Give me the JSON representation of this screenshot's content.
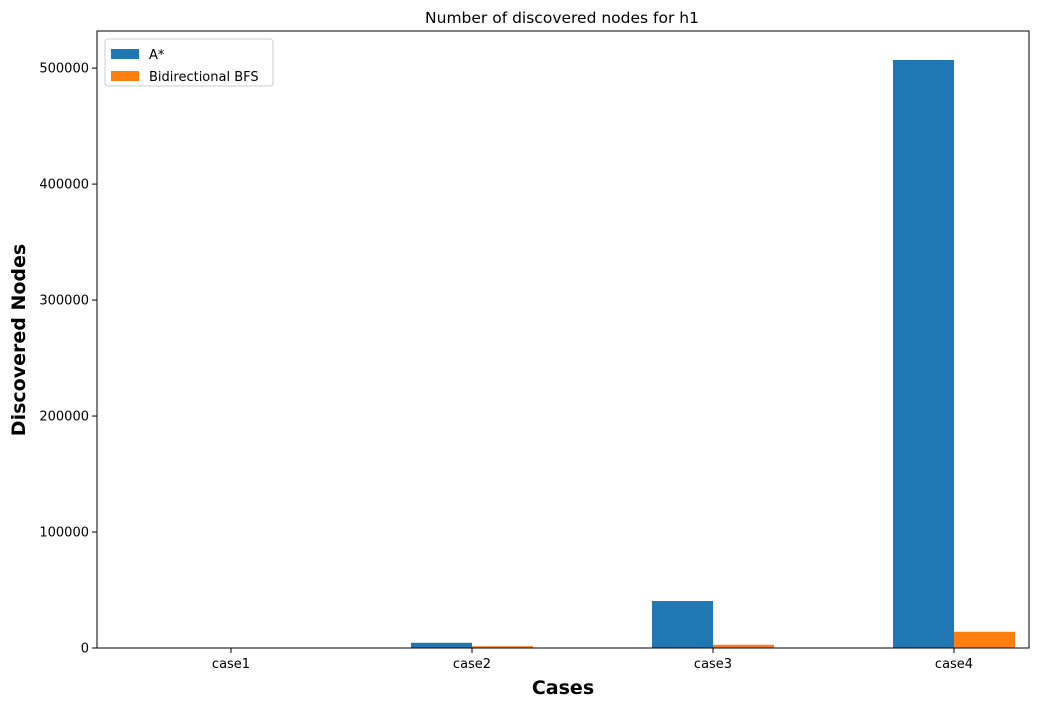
{
  "chart_data": {
    "type": "bar",
    "title": "Number of discovered nodes for h1",
    "xlabel": "Cases",
    "ylabel": "Discovered Nodes",
    "categories": [
      "case1",
      "case2",
      "case3",
      "case4"
    ],
    "series": [
      {
        "name": "A*",
        "color": "#1f77b4",
        "values": [
          150,
          4500,
          40500,
          507000
        ]
      },
      {
        "name": "Bidirectional BFS",
        "color": "#ff7f0e",
        "values": [
          50,
          1500,
          2800,
          14000
        ]
      }
    ],
    "ylim": [
      0,
      532000
    ],
    "yticks": [
      0,
      100000,
      200000,
      300000,
      400000,
      500000
    ],
    "ytick_labels": [
      "0",
      "100000",
      "200000",
      "300000",
      "400000",
      "500000"
    ],
    "legend_position": "upper-left",
    "grid": false
  }
}
